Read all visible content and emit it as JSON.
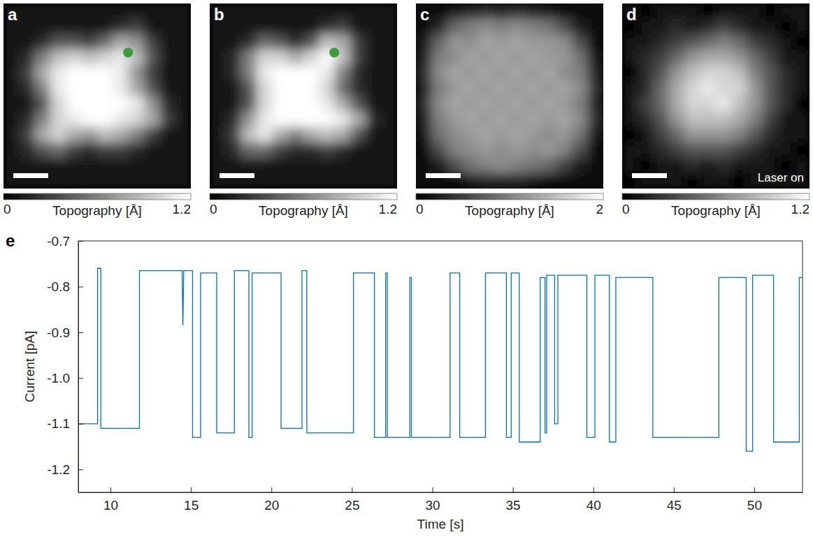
{
  "chart_data": [
    {
      "type": "heatmap",
      "title": "a",
      "marker": "dot",
      "tick_labels": false,
      "colorbar": {
        "label": "Topography [Å]",
        "range": [
          0,
          1.2
        ],
        "ticks": [
          0,
          1.2
        ]
      },
      "cells": [
        [
          0.1,
          0.1,
          0.1,
          0.1,
          0.1,
          0.1,
          0.1,
          0.1,
          0.1,
          0.1,
          0.1,
          0.1
        ],
        [
          0.1,
          0.1,
          0.1,
          0.1,
          0.1,
          0.1,
          0.1,
          0.2,
          0.3,
          0.1,
          0.1,
          0.1
        ],
        [
          0.1,
          0.1,
          0.2,
          0.4,
          0.4,
          0.3,
          0.5,
          0.8,
          0.7,
          0.3,
          0.1,
          0.1
        ],
        [
          0.1,
          0.2,
          0.6,
          0.9,
          1.0,
          0.9,
          1.0,
          1.1,
          0.9,
          0.4,
          0.1,
          0.1
        ],
        [
          0.1,
          0.3,
          0.8,
          1.1,
          1.2,
          1.2,
          1.2,
          1.1,
          0.7,
          0.3,
          0.1,
          0.1
        ],
        [
          0.1,
          0.2,
          0.6,
          1.1,
          1.2,
          1.2,
          1.2,
          1.1,
          0.8,
          0.4,
          0.1,
          0.1
        ],
        [
          0.1,
          0.1,
          0.4,
          1.0,
          1.2,
          1.2,
          1.2,
          1.2,
          1.1,
          0.7,
          0.2,
          0.1
        ],
        [
          0.1,
          0.2,
          0.6,
          1.0,
          1.1,
          1.2,
          1.2,
          1.1,
          1.0,
          0.8,
          0.3,
          0.1
        ],
        [
          0.1,
          0.3,
          0.8,
          1.0,
          0.8,
          0.7,
          0.9,
          0.8,
          0.6,
          0.3,
          0.1,
          0.1
        ],
        [
          0.1,
          0.2,
          0.4,
          0.5,
          0.3,
          0.2,
          0.3,
          0.3,
          0.2,
          0.1,
          0.1,
          0.1
        ],
        [
          0.1,
          0.1,
          0.1,
          0.1,
          0.1,
          0.1,
          0.1,
          0.1,
          0.1,
          0.1,
          0.1,
          0.1
        ],
        [
          0.1,
          0.1,
          0.1,
          0.1,
          0.1,
          0.1,
          0.1,
          0.1,
          0.1,
          0.1,
          0.1,
          0.1
        ]
      ]
    },
    {
      "type": "heatmap",
      "title": "b",
      "marker": "dot",
      "tick_labels": false,
      "colorbar": {
        "label": "Topography [Å]",
        "range": [
          0,
          1.2
        ],
        "ticks": [
          0,
          1.2
        ]
      },
      "cells": [
        [
          0.1,
          0.1,
          0.1,
          0.1,
          0.1,
          0.1,
          0.1,
          0.1,
          0.1,
          0.1,
          0.1,
          0.1
        ],
        [
          0.1,
          0.1,
          0.1,
          0.1,
          0.1,
          0.1,
          0.1,
          0.2,
          0.3,
          0.1,
          0.1,
          0.1
        ],
        [
          0.1,
          0.1,
          0.2,
          0.5,
          0.4,
          0.2,
          0.4,
          0.9,
          0.8,
          0.3,
          0.1,
          0.1
        ],
        [
          0.1,
          0.2,
          0.6,
          1.0,
          1.0,
          0.8,
          1.0,
          1.2,
          0.9,
          0.3,
          0.1,
          0.1
        ],
        [
          0.1,
          0.2,
          0.6,
          1.1,
          1.2,
          1.2,
          1.2,
          1.1,
          0.6,
          0.2,
          0.1,
          0.1
        ],
        [
          0.1,
          0.1,
          0.4,
          1.0,
          1.2,
          1.2,
          1.2,
          1.0,
          0.5,
          0.2,
          0.1,
          0.1
        ],
        [
          0.1,
          0.1,
          0.4,
          1.0,
          1.2,
          1.2,
          1.2,
          1.1,
          0.8,
          0.4,
          0.1,
          0.1
        ],
        [
          0.1,
          0.2,
          0.7,
          1.1,
          1.2,
          1.2,
          1.2,
          1.2,
          1.1,
          0.8,
          0.2,
          0.1
        ],
        [
          0.1,
          0.3,
          0.9,
          1.1,
          0.8,
          0.6,
          0.8,
          0.9,
          0.8,
          0.4,
          0.1,
          0.1
        ],
        [
          0.1,
          0.2,
          0.5,
          0.5,
          0.3,
          0.2,
          0.2,
          0.3,
          0.2,
          0.1,
          0.1,
          0.1
        ],
        [
          0.1,
          0.1,
          0.1,
          0.1,
          0.1,
          0.1,
          0.1,
          0.1,
          0.1,
          0.1,
          0.1,
          0.1
        ],
        [
          0.1,
          0.1,
          0.1,
          0.1,
          0.1,
          0.1,
          0.1,
          0.1,
          0.1,
          0.1,
          0.1,
          0.1
        ]
      ]
    },
    {
      "type": "heatmap",
      "title": "c",
      "tick_labels": false,
      "colorbar": {
        "label": "Topography [Å]",
        "range": [
          0,
          2
        ],
        "ticks": [
          0,
          2
        ]
      },
      "cells": [
        [
          0.1,
          0.1,
          0.2,
          0.3,
          0.4,
          0.3,
          0.4,
          0.3,
          0.2,
          0.1,
          0.1,
          0.1
        ],
        [
          0.1,
          0.3,
          0.8,
          1.0,
          1.1,
          1.0,
          1.1,
          1.0,
          0.9,
          0.6,
          0.2,
          0.1
        ],
        [
          0.2,
          0.8,
          1.2,
          1.1,
          1.3,
          1.2,
          1.3,
          1.2,
          1.2,
          1.1,
          0.6,
          0.1
        ],
        [
          0.3,
          1.0,
          1.1,
          1.3,
          1.2,
          1.3,
          1.2,
          1.3,
          1.2,
          1.2,
          0.9,
          0.2
        ],
        [
          0.4,
          1.1,
          1.3,
          1.2,
          1.3,
          1.2,
          1.3,
          1.2,
          1.3,
          1.1,
          1.0,
          0.3
        ],
        [
          0.3,
          1.0,
          1.2,
          1.3,
          1.2,
          1.3,
          1.2,
          1.3,
          1.2,
          1.3,
          1.1,
          0.4
        ],
        [
          0.4,
          1.1,
          1.3,
          1.2,
          1.3,
          1.2,
          1.3,
          1.2,
          1.3,
          1.2,
          1.0,
          0.3
        ],
        [
          0.3,
          1.0,
          1.2,
          1.3,
          1.2,
          1.3,
          1.2,
          1.3,
          1.2,
          1.3,
          1.1,
          0.4
        ],
        [
          0.2,
          0.9,
          1.1,
          1.2,
          1.3,
          1.2,
          1.3,
          1.2,
          1.1,
          1.2,
          0.9,
          0.2
        ],
        [
          0.1,
          0.6,
          1.0,
          1.1,
          1.2,
          1.1,
          1.2,
          1.1,
          1.2,
          1.0,
          0.6,
          0.1
        ],
        [
          0.1,
          0.2,
          0.6,
          0.9,
          1.0,
          1.1,
          1.0,
          0.9,
          0.8,
          0.5,
          0.2,
          0.1
        ],
        [
          0.1,
          0.1,
          0.1,
          0.2,
          0.3,
          0.3,
          0.3,
          0.2,
          0.1,
          0.1,
          0.1,
          0.1
        ]
      ]
    },
    {
      "type": "heatmap",
      "title": "d",
      "tick_labels": false,
      "annotations": [
        "Laser on"
      ],
      "colorbar": {
        "label": "Topography [Å]",
        "range": [
          0,
          1.2
        ],
        "ticks": [
          0,
          1.2
        ]
      },
      "cells": [
        [
          0.1,
          0.0,
          0.1,
          0.1,
          0.1,
          0.0,
          0.1,
          0.1,
          0.1,
          0.0,
          0.1,
          0.1
        ],
        [
          0.0,
          0.1,
          0.1,
          0.2,
          0.1,
          0.2,
          0.3,
          0.2,
          0.1,
          0.1,
          0.0,
          0.1
        ],
        [
          0.1,
          0.1,
          0.2,
          0.3,
          0.4,
          0.5,
          0.6,
          0.5,
          0.3,
          0.2,
          0.1,
          0.0
        ],
        [
          0.1,
          0.2,
          0.3,
          0.5,
          0.7,
          0.8,
          0.8,
          0.7,
          0.5,
          0.3,
          0.1,
          0.1
        ],
        [
          0.0,
          0.2,
          0.4,
          0.7,
          0.9,
          1.0,
          1.0,
          0.9,
          0.6,
          0.4,
          0.2,
          0.1
        ],
        [
          0.1,
          0.2,
          0.5,
          0.8,
          1.0,
          1.1,
          1.0,
          1.0,
          0.7,
          0.4,
          0.2,
          0.1
        ],
        [
          0.1,
          0.3,
          0.5,
          0.8,
          1.0,
          1.0,
          1.1,
          0.9,
          0.7,
          0.4,
          0.2,
          0.0
        ],
        [
          0.1,
          0.2,
          0.4,
          0.7,
          0.9,
          0.9,
          0.9,
          0.8,
          0.6,
          0.3,
          0.1,
          0.1
        ],
        [
          0.0,
          0.1,
          0.3,
          0.5,
          0.7,
          0.7,
          0.7,
          0.6,
          0.4,
          0.2,
          0.1,
          0.1
        ],
        [
          0.1,
          0.1,
          0.2,
          0.3,
          0.4,
          0.4,
          0.4,
          0.3,
          0.2,
          0.1,
          0.1,
          0.0
        ],
        [
          0.1,
          0.0,
          0.1,
          0.1,
          0.2,
          0.1,
          0.2,
          0.1,
          0.1,
          0.1,
          0.0,
          0.1
        ],
        [
          0.0,
          0.1,
          0.1,
          0.1,
          0.0,
          0.1,
          0.1,
          0.0,
          0.1,
          0.1,
          0.1,
          0.1
        ]
      ]
    },
    {
      "type": "line",
      "title": "e",
      "xlabel": "Time [s]",
      "ylabel": "Current [pA]",
      "color": "#0072bd",
      "xlim": [
        8,
        53
      ],
      "xticks": [
        10,
        15,
        20,
        25,
        30,
        35,
        40,
        45,
        50
      ],
      "ylim": [
        -1.25,
        -0.7
      ],
      "yticks": [
        -0.7,
        -0.8,
        -0.9,
        {
          "value": -1,
          "label": "-1.0"
        },
        -1.1,
        -1.2
      ],
      "x": [
        8.0,
        9.2,
        9.2,
        9.4,
        9.4,
        11.8,
        11.8,
        14.45,
        14.5,
        14.55,
        15.1,
        15.1,
        15.6,
        15.6,
        16.6,
        16.6,
        17.7,
        17.7,
        18.6,
        18.6,
        18.8,
        18.8,
        20.6,
        20.6,
        21.9,
        21.9,
        22.2,
        22.2,
        25.1,
        25.1,
        26.4,
        26.4,
        27.1,
        27.1,
        27.2,
        27.2,
        28.6,
        28.6,
        28.7,
        28.7,
        31.1,
        31.1,
        31.7,
        31.7,
        33.3,
        33.3,
        34.6,
        34.6,
        34.9,
        34.9,
        35.4,
        35.4,
        36.7,
        36.7,
        37.0,
        37.0,
        37.1,
        37.1,
        37.6,
        37.6,
        37.8,
        37.8,
        39.6,
        39.6,
        40.1,
        40.1,
        41.0,
        41.0,
        41.4,
        41.4,
        43.7,
        43.7,
        47.8,
        47.8,
        49.5,
        49.5,
        49.9,
        49.9,
        51.2,
        51.2,
        52.8,
        52.8,
        53.0
      ],
      "values": [
        -1.1,
        -1.1,
        -0.76,
        -0.76,
        -1.11,
        -1.11,
        -0.765,
        -0.765,
        -0.885,
        -0.765,
        -0.765,
        -1.13,
        -1.13,
        -0.77,
        -0.77,
        -1.12,
        -1.12,
        -0.765,
        -0.765,
        -1.13,
        -1.13,
        -0.77,
        -0.77,
        -1.11,
        -1.11,
        -0.765,
        -0.765,
        -1.12,
        -1.12,
        -0.77,
        -0.77,
        -1.13,
        -1.13,
        -0.77,
        -0.77,
        -1.13,
        -1.13,
        -0.78,
        -0.78,
        -1.13,
        -1.13,
        -0.77,
        -0.77,
        -1.13,
        -1.13,
        -0.77,
        -0.77,
        -1.13,
        -1.13,
        -0.77,
        -0.77,
        -1.14,
        -1.14,
        -0.78,
        -0.78,
        -1.12,
        -1.12,
        -0.775,
        -0.775,
        -1.1,
        -1.1,
        -0.775,
        -0.775,
        -1.13,
        -1.13,
        -0.775,
        -0.775,
        -1.14,
        -1.14,
        -0.78,
        -0.78,
        -1.13,
        -1.13,
        -0.78,
        -0.78,
        -1.16,
        -1.16,
        -0.775,
        -0.775,
        -1.14,
        -1.14,
        -0.78,
        -0.78
      ]
    }
  ]
}
